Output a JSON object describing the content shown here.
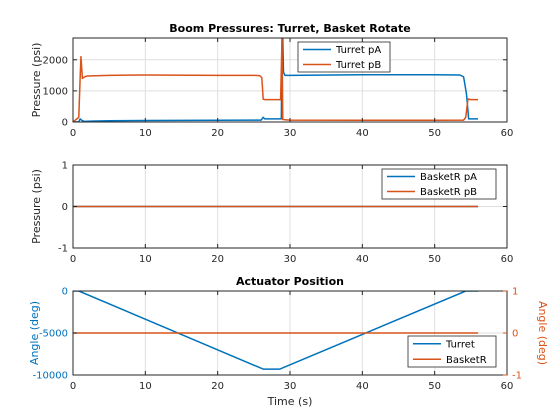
{
  "colors": {
    "blue": "#0072bd",
    "orange": "#d95319",
    "axis": "#262626",
    "grid": "#dfdfdf"
  },
  "chart_data": [
    {
      "type": "line",
      "title": "Boom Pressures: Turret, Basket Rotate",
      "xlabel": "",
      "ylabel": "Pressure (psi)",
      "xlim": [
        0,
        60
      ],
      "ylim": [
        0,
        2700
      ],
      "xticks": [
        0,
        10,
        20,
        30,
        40,
        50,
        60
      ],
      "yticks": [
        0,
        1000,
        2000
      ],
      "grid": true,
      "legend": "top-center",
      "series": [
        {
          "name": "Turret pA",
          "color": "#0072bd",
          "x": [
            0,
            0.8,
            1.0,
            1.3,
            1.6,
            2.5,
            5,
            10,
            20,
            25,
            26,
            26.3,
            26.5,
            28.0,
            28.6,
            28.8,
            28.9,
            29.0,
            29.1,
            29.3,
            30,
            40,
            50,
            53.5,
            54.0,
            54.4,
            54.7,
            55,
            56
          ],
          "y": [
            0,
            10,
            100,
            40,
            20,
            30,
            40,
            50,
            55,
            60,
            60,
            150,
            100,
            100,
            100,
            100,
            2700,
            2700,
            1600,
            1500,
            1500,
            1520,
            1520,
            1510,
            1450,
            900,
            100,
            100,
            100
          ]
        },
        {
          "name": "Turret pB",
          "color": "#d95319",
          "x": [
            0,
            0.8,
            1.0,
            1.1,
            1.3,
            1.6,
            2.0,
            5,
            10,
            20,
            25,
            25.8,
            26.1,
            26.3,
            26.6,
            28.0,
            28.7,
            28.9,
            29.0,
            29.5,
            30,
            40,
            50,
            54,
            54.3,
            54.6,
            54.8,
            55,
            56
          ],
          "y": [
            0,
            150,
            1500,
            2100,
            1400,
            1450,
            1480,
            1500,
            1510,
            1500,
            1500,
            1490,
            1430,
            730,
            720,
            720,
            720,
            2700,
            80,
            70,
            60,
            55,
            55,
            60,
            150,
            740,
            730,
            720,
            720
          ]
        }
      ]
    },
    {
      "type": "line",
      "title": "",
      "xlabel": "",
      "ylabel": "Pressure (psi)",
      "xlim": [
        0,
        60
      ],
      "ylim": [
        -1,
        1
      ],
      "xticks": [
        0,
        10,
        20,
        30,
        40,
        50,
        60
      ],
      "yticks": [
        -1,
        0,
        1
      ],
      "grid": true,
      "legend": "top-right",
      "series": [
        {
          "name": "BasketR pA",
          "color": "#0072bd",
          "x": [
            0,
            56
          ],
          "y": [
            0,
            0
          ]
        },
        {
          "name": "BasketR pB",
          "color": "#d95319",
          "x": [
            0,
            56
          ],
          "y": [
            0,
            0
          ]
        }
      ]
    },
    {
      "type": "line",
      "title": "Actuator Position",
      "xlabel": "Time (s)",
      "ylabel": "Angle (deg)",
      "ylabel_right": "Angle (deg)",
      "xlim": [
        0,
        60
      ],
      "ylim": [
        -10000,
        0
      ],
      "ylim_right": [
        -1,
        1
      ],
      "xticks": [
        0,
        10,
        20,
        30,
        40,
        50,
        60
      ],
      "yticks": [
        -10000,
        -5000,
        0
      ],
      "yticks_right": [
        -1,
        0,
        1
      ],
      "grid": true,
      "legend": "bottom-right",
      "series": [
        {
          "name": "Turret",
          "color": "#0072bd",
          "axis": "left",
          "x": [
            0,
            0.8,
            26.3,
            28.6,
            54.3,
            55,
            56
          ],
          "y": [
            0,
            0,
            -9300,
            -9300,
            0,
            0,
            0
          ]
        },
        {
          "name": "BasketR",
          "color": "#d95319",
          "axis": "right",
          "x": [
            0,
            56
          ],
          "y": [
            0,
            0
          ]
        }
      ]
    }
  ]
}
